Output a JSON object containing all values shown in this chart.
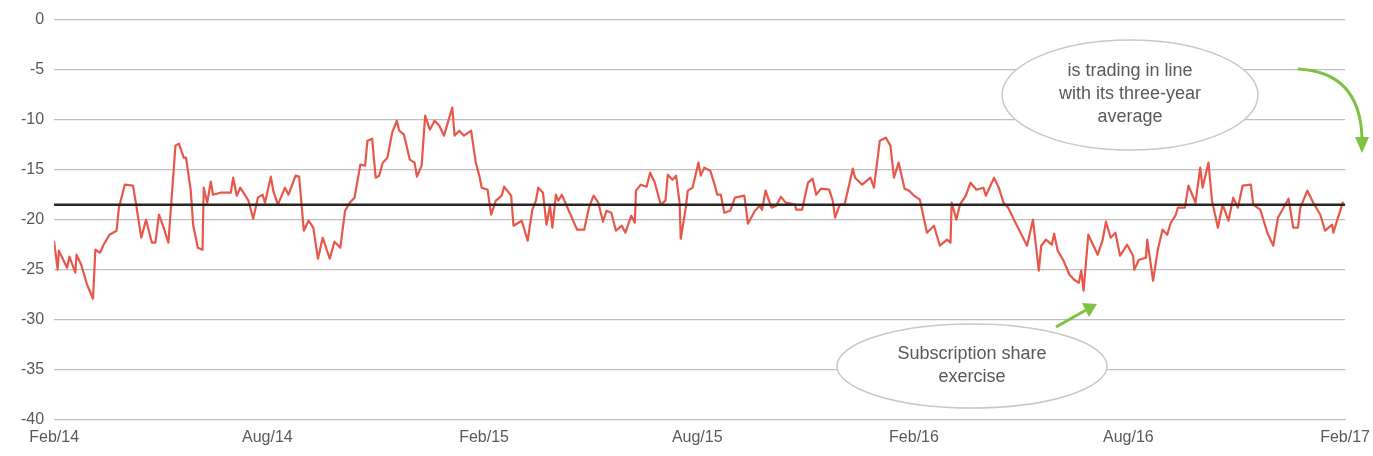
{
  "chart_data": {
    "type": "line",
    "xlim": [
      "2014-02-01",
      "2017-02-01"
    ],
    "xticks": [
      {
        "value": "2014-02-01",
        "label": "Feb/14"
      },
      {
        "value": "2014-08-01",
        "label": "Aug/14"
      },
      {
        "value": "2015-02-01",
        "label": "Feb/15"
      },
      {
        "value": "2015-08-01",
        "label": "Aug/15"
      },
      {
        "value": "2016-02-01",
        "label": "Feb/16"
      },
      {
        "value": "2016-08-01",
        "label": "Aug/16"
      },
      {
        "value": "2017-02-01",
        "label": "Feb/17"
      }
    ],
    "ylim": [
      -40,
      0
    ],
    "yticks": [
      -40,
      -35,
      -30,
      -25,
      -20,
      -15,
      -10,
      -5,
      0
    ],
    "grid": "y",
    "legend": false,
    "marker": "none",
    "ref_lines": [
      {
        "axis": "y",
        "value": -18.5,
        "color": "#262626"
      }
    ],
    "annotations": [
      "is trading in line with its three-year average",
      "Subscription share exercise"
    ],
    "series": [
      {
        "color": "#e8574a",
        "x": [
          "2014-02-01",
          "2014-02-04",
          "2014-02-05",
          "2014-02-12",
          "2014-02-14",
          "2014-02-19",
          "2014-02-20",
          "2014-02-24",
          "2014-03-01",
          "2014-03-06",
          "2014-03-08",
          "2014-03-12",
          "2014-03-15",
          "2014-03-20",
          "2014-03-26",
          "2014-03-28",
          "2014-04-02",
          "2014-04-09",
          "2014-04-12",
          "2014-04-16",
          "2014-04-20",
          "2014-04-25",
          "2014-04-28",
          "2014-05-01",
          "2014-05-05",
          "2014-05-09",
          "2014-05-15",
          "2014-05-18",
          "2014-05-22",
          "2014-05-24",
          "2014-05-28",
          "2014-05-30",
          "2014-06-03",
          "2014-06-07",
          "2014-06-08",
          "2014-06-11",
          "2014-06-14",
          "2014-06-16",
          "2014-06-22",
          "2014-07-01",
          "2014-07-03",
          "2014-07-06",
          "2014-07-09",
          "2014-07-16",
          "2014-07-20",
          "2014-07-24",
          "2014-07-28",
          "2014-07-30",
          "2014-08-04",
          "2014-08-06",
          "2014-08-10",
          "2014-08-16",
          "2014-08-19",
          "2014-08-25",
          "2014-08-28",
          "2014-09-01",
          "2014-09-05",
          "2014-09-09",
          "2014-09-13",
          "2014-09-17",
          "2014-09-23",
          "2014-09-27",
          "2014-10-02",
          "2014-10-06",
          "2014-10-10",
          "2014-10-14",
          "2014-10-19",
          "2014-10-23",
          "2014-10-25",
          "2014-10-29",
          "2014-11-01",
          "2014-11-04",
          "2014-11-07",
          "2014-11-11",
          "2014-11-15",
          "2014-11-19",
          "2014-11-21",
          "2014-11-25",
          "2014-11-30",
          "2014-12-04",
          "2014-12-06",
          "2014-12-10",
          "2014-12-13",
          "2014-12-17",
          "2014-12-21",
          "2014-12-25",
          "2014-12-29",
          "2015-01-05",
          "2015-01-07",
          "2015-01-11",
          "2015-01-15",
          "2015-01-21",
          "2015-01-25",
          "2015-01-28",
          "2015-01-30",
          "2015-02-04",
          "2015-02-07",
          "2015-02-11",
          "2015-02-16",
          "2015-02-18",
          "2015-02-24",
          "2015-02-26",
          "2015-03-05",
          "2015-03-10",
          "2015-03-14",
          "2015-03-17",
          "2015-03-19",
          "2015-03-23",
          "2015-03-26",
          "2015-03-29",
          "2015-03-31",
          "2015-04-03",
          "2015-04-05",
          "2015-04-08",
          "2015-04-14",
          "2015-04-21",
          "2015-04-27",
          "2015-05-01",
          "2015-05-05",
          "2015-05-09",
          "2015-05-13",
          "2015-05-16",
          "2015-05-20",
          "2015-05-24",
          "2015-05-29",
          "2015-06-01",
          "2015-06-06",
          "2015-06-09",
          "2015-06-10",
          "2015-06-14",
          "2015-06-19",
          "2015-06-22",
          "2015-06-26",
          "2015-07-01",
          "2015-07-05",
          "2015-07-07",
          "2015-07-11",
          "2015-07-14",
          "2015-07-17",
          "2015-07-18",
          "2015-07-22",
          "2015-07-24",
          "2015-07-28",
          "2015-07-30",
          "2015-08-02",
          "2015-08-04",
          "2015-08-07",
          "2015-08-12",
          "2015-08-16",
          "2015-08-18",
          "2015-08-21",
          "2015-08-24",
          "2015-08-29",
          "2015-09-02",
          "2015-09-10",
          "2015-09-13",
          "2015-09-19",
          "2015-09-23",
          "2015-09-25",
          "2015-09-28",
          "2015-10-03",
          "2015-10-07",
          "2015-10-11",
          "2015-10-15",
          "2015-10-23",
          "2015-10-24",
          "2015-10-29",
          "2015-11-03",
          "2015-11-07",
          "2015-11-10",
          "2015-11-14",
          "2015-11-21",
          "2015-11-24",
          "2015-11-26",
          "2015-11-30",
          "2015-12-04",
          "2015-12-08",
          "2015-12-11",
          "2015-12-13",
          "2015-12-19",
          "2015-12-26",
          "2015-12-29",
          "2016-01-03",
          "2016-01-08",
          "2016-01-12",
          "2016-01-15",
          "2016-01-19",
          "2016-01-24",
          "2016-01-28",
          "2016-02-01",
          "2016-02-06",
          "2016-02-12",
          "2016-02-18",
          "2016-02-23",
          "2016-02-29",
          "2016-03-03",
          "2016-03-04",
          "2016-03-08",
          "2016-03-11",
          "2016-03-16",
          "2016-03-20",
          "2016-03-25",
          "2016-03-31",
          "2016-04-02",
          "2016-04-09",
          "2016-04-13",
          "2016-04-17",
          "2016-04-21",
          "2016-04-28",
          "2016-05-07",
          "2016-05-12",
          "2016-05-17",
          "2016-05-19",
          "2016-05-23",
          "2016-05-28",
          "2016-05-30",
          "2016-06-02",
          "2016-06-07",
          "2016-06-12",
          "2016-06-16",
          "2016-06-20",
          "2016-06-22",
          "2016-06-24",
          "2016-06-28",
          "2016-07-02",
          "2016-07-06",
          "2016-07-10",
          "2016-07-13",
          "2016-07-17",
          "2016-07-21",
          "2016-07-25",
          "2016-07-31",
          "2016-08-05",
          "2016-08-06",
          "2016-08-10",
          "2016-08-16",
          "2016-08-17",
          "2016-08-22",
          "2016-08-26",
          "2016-08-30",
          "2016-09-03",
          "2016-09-06",
          "2016-09-10",
          "2016-09-12",
          "2016-09-18",
          "2016-09-21",
          "2016-09-27",
          "2016-10-01",
          "2016-10-03",
          "2016-10-08",
          "2016-10-11",
          "2016-10-16",
          "2016-10-20",
          "2016-10-25",
          "2016-10-29",
          "2016-11-02",
          "2016-11-06",
          "2016-11-13",
          "2016-11-15",
          "2016-11-21",
          "2016-11-27",
          "2016-12-02",
          "2016-12-06",
          "2016-12-15",
          "2016-12-19",
          "2016-12-23",
          "2016-12-25",
          "2016-12-31",
          "2017-01-05",
          "2017-01-11",
          "2017-01-15",
          "2017-01-21",
          "2017-01-22",
          "2017-01-26",
          "2017-01-30"
        ],
        "values": [
          -22.2,
          -25.0,
          -23.1,
          -24.8,
          -23.7,
          -25.3,
          -23.5,
          -24.5,
          -26.5,
          -27.9,
          -23,
          -23.3,
          -22.5,
          -21.5,
          -21.1,
          -18.8,
          -16.5,
          -16.6,
          -18.8,
          -21.8,
          -20,
          -22.3,
          -22.3,
          -19.5,
          -20.8,
          -22.3,
          -12.6,
          -12.4,
          -13.8,
          -13.8,
          -17.1,
          -20.5,
          -22.8,
          -23,
          -16.8,
          -18.3,
          -16.2,
          -17.5,
          -17.3,
          -17.3,
          -15.8,
          -17.6,
          -16.8,
          -18.1,
          -19.9,
          -17.8,
          -17.5,
          -18.3,
          -15.7,
          -17.1,
          -18.5,
          -16.8,
          -17.5,
          -15.6,
          -15.7,
          -21.1,
          -20.1,
          -20.8,
          -23.9,
          -21.8,
          -23.9,
          -22.2,
          -22.8,
          -19.1,
          -18.3,
          -17.8,
          -14.5,
          -14.6,
          -12.1,
          -11.9,
          -15.8,
          -15.6,
          -14.3,
          -13.8,
          -11.3,
          -10.1,
          -11.1,
          -11.5,
          -14,
          -14.3,
          -15.7,
          -14.6,
          -9.6,
          -11,
          -10.1,
          -10.6,
          -11.6,
          -8.8,
          -11.6,
          -11.1,
          -11.6,
          -11.1,
          -14.3,
          -15.6,
          -16.8,
          -17,
          -19.5,
          -18.1,
          -17.6,
          -16.7,
          -17.6,
          -20.6,
          -20.1,
          -22.1,
          -19,
          -18.1,
          -16.8,
          -17.3,
          -20.5,
          -18.6,
          -20.8,
          -17.5,
          -18.1,
          -17.5,
          -19.1,
          -21,
          -21,
          -18.8,
          -17.6,
          -18.3,
          -20.2,
          -19.1,
          -19.3,
          -21.1,
          -20.6,
          -21.3,
          -19.6,
          -20.3,
          -17.1,
          -16.5,
          -16.7,
          -15.3,
          -16.3,
          -18.5,
          -18.1,
          -15.5,
          -16,
          -15.6,
          -18.3,
          -21.9,
          -19,
          -17.1,
          -16.8,
          -15.8,
          -14.3,
          -15.6,
          -14.8,
          -15.1,
          -16.6,
          -17.5,
          -17.5,
          -19.3,
          -19.1,
          -17.8,
          -17.6,
          -20.4,
          -19.1,
          -18.6,
          -19,
          -17.1,
          -18.8,
          -18.6,
          -17.7,
          -18.3,
          -18.5,
          -19,
          -19,
          -16.3,
          -15.9,
          -17.5,
          -16.9,
          -17,
          -18.1,
          -19.8,
          -18.5,
          -18.5,
          -16.5,
          -14.9,
          -15.8,
          -16.5,
          -15.8,
          -16.8,
          -12.1,
          -11.8,
          -12.6,
          -15.8,
          -14.3,
          -16.9,
          -17.1,
          -17.6,
          -18,
          -21.3,
          -20.6,
          -22.6,
          -22,
          -22.3,
          -18.3,
          -20,
          -18.5,
          -17.6,
          -16.3,
          -17,
          -16.8,
          -17.6,
          -15.8,
          -16.8,
          -18.3,
          -18.8,
          -20.5,
          -22.6,
          -20,
          -25.1,
          -22.6,
          -22,
          -22.5,
          -21.4,
          -23.1,
          -24.1,
          -25.5,
          -26,
          -26.3,
          -25.1,
          -27.1,
          -21.5,
          -22.5,
          -23.5,
          -22.1,
          -20.2,
          -21.8,
          -21.3,
          -23.6,
          -22.5,
          -23.6,
          -25,
          -24,
          -23.8,
          -22,
          -26.1,
          -23,
          -21,
          -21.5,
          -20.3,
          -19.6,
          -18.8,
          -18.8,
          -16.6,
          -18.3,
          -14.8,
          -16.8,
          -14.3,
          -18.1,
          -20.8,
          -18.5,
          -20.1,
          -17.8,
          -18.8,
          -16.6,
          -16.5,
          -18.5,
          -19,
          -21.3,
          -22.6,
          -19.8,
          -17.9,
          -20.8,
          -20.8,
          -18.8,
          -17.1,
          -18.3,
          -19.5,
          -21.1,
          -20.5,
          -21.3,
          -19.8,
          -18.3
        ]
      }
    ]
  }
}
